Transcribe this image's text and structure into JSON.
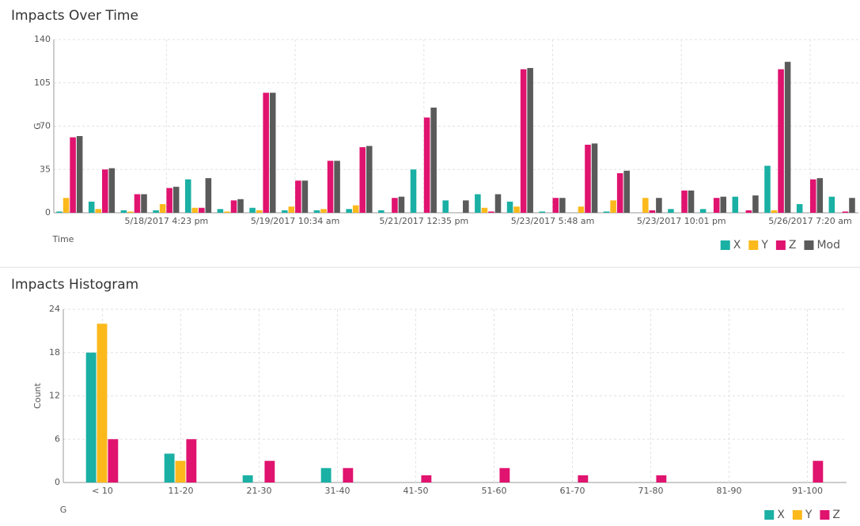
{
  "chart_data": [
    {
      "type": "bar",
      "title": "Impacts Over Time",
      "xlabel": "Time",
      "ylabel": "G",
      "categories": [
        null,
        null,
        null,
        "5/18/2017 4:23 pm",
        null,
        null,
        null,
        "5/19/2017 10:34 am",
        null,
        null,
        null,
        "5/21/2017 12:35 pm",
        null,
        null,
        null,
        "5/23/2017 5:48 am",
        null,
        null,
        null,
        "5/23/2017 10:01 pm",
        null,
        null,
        null,
        "5/26/2017 7:20 am",
        null
      ],
      "series": [
        {
          "name": "X",
          "color": "#1ab0a4",
          "values": [
            1,
            9,
            2,
            2,
            27,
            3,
            4,
            2,
            2,
            3,
            2,
            35,
            10,
            15,
            9,
            1,
            0,
            1,
            0,
            3,
            3,
            13,
            38,
            7,
            13
          ]
        },
        {
          "name": "Y",
          "color": "#fbb91c",
          "values": [
            12,
            3,
            1,
            7,
            4,
            1,
            2,
            5,
            3,
            6,
            0,
            0,
            0,
            4,
            5,
            0,
            5,
            10,
            12,
            0,
            0,
            0,
            2,
            0,
            0
          ]
        },
        {
          "name": "Z",
          "color": "#e0136f",
          "values": [
            61,
            35,
            15,
            20,
            4,
            10,
            97,
            26,
            42,
            53,
            12,
            77,
            0,
            1,
            116,
            12,
            55,
            32,
            2,
            18,
            12,
            2,
            116,
            27,
            1
          ]
        },
        {
          "name": "Mod",
          "color": "#5a5a5a",
          "values": [
            62,
            36,
            15,
            21,
            28,
            11,
            97,
            26,
            42,
            54,
            13,
            85,
            10,
            15,
            117,
            12,
            56,
            34,
            12,
            18,
            13,
            14,
            122,
            28,
            12
          ]
        }
      ],
      "ylim": [
        0,
        140
      ],
      "yticks": [
        0,
        35,
        70,
        105,
        140
      ],
      "grid": true,
      "legend": "bottom right"
    },
    {
      "type": "bar",
      "title": "Impacts Histogram",
      "xlabel": "G",
      "ylabel": "Count",
      "categories": [
        "< 10",
        "11-20",
        "21-30",
        "31-40",
        "41-50",
        "51-60",
        "61-70",
        "71-80",
        "81-90",
        "91-100"
      ],
      "series": [
        {
          "name": "X",
          "color": "#1ab0a4",
          "values": [
            18,
            4,
            1,
            2,
            0,
            0,
            0,
            0,
            0,
            0
          ]
        },
        {
          "name": "Y",
          "color": "#fbb91c",
          "values": [
            22,
            3,
            0,
            0,
            0,
            0,
            0,
            0,
            0,
            0
          ]
        },
        {
          "name": "Z",
          "color": "#e0136f",
          "values": [
            6,
            6,
            3,
            2,
            1,
            2,
            1,
            1,
            0,
            3
          ]
        }
      ],
      "ylim": [
        0,
        24
      ],
      "yticks": [
        0,
        6,
        12,
        18,
        24
      ],
      "grid": true,
      "legend": "bottom right"
    }
  ]
}
